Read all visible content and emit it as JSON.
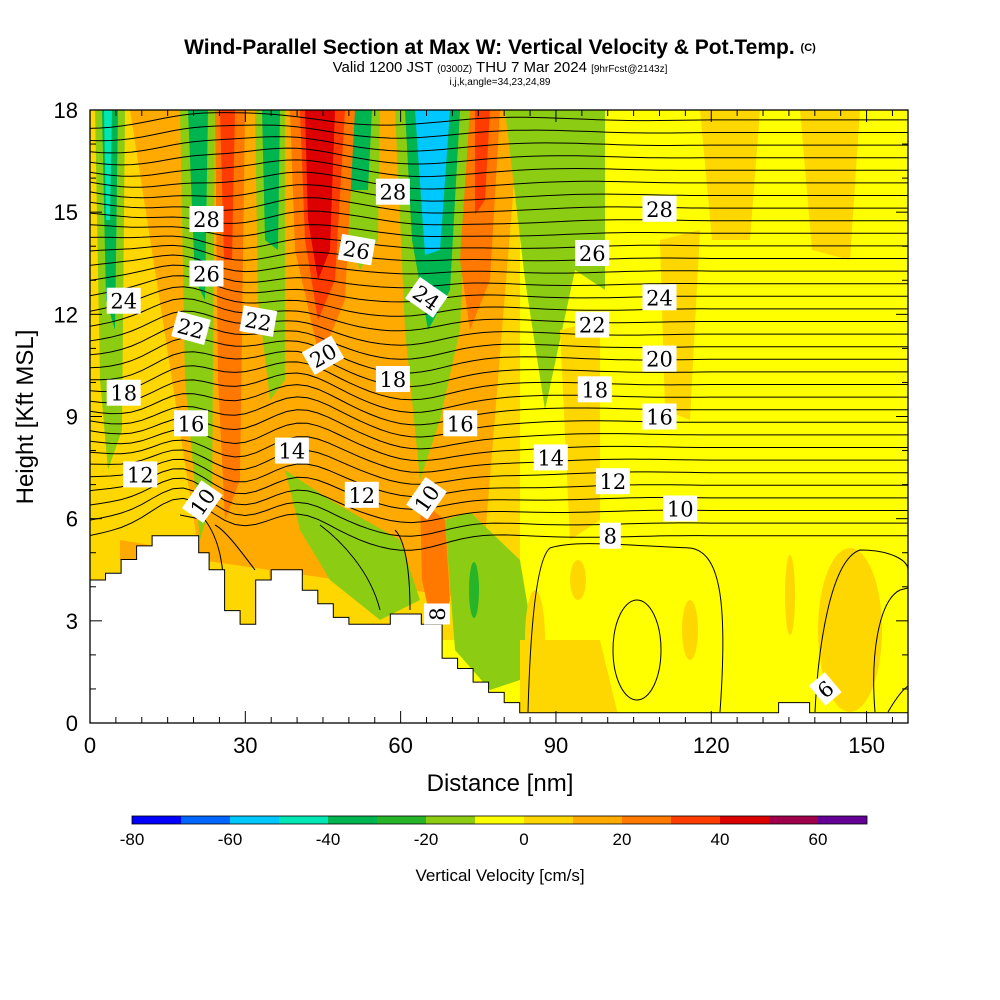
{
  "title": {
    "main": "Wind-Parallel Section at Max W: Vertical Velocity & Pot.Temp.",
    "copyright": "(C)",
    "valid_prefix": "Valid 1200 JST",
    "valid_utc": "(0300Z)",
    "valid_date": "THU 7 Mar 2024",
    "fcst": "[9hrFcst@2143z]",
    "params": "i,j,k,angle=34,23,24,89"
  },
  "chart_data": {
    "type": "heatmap",
    "xlabel": "Distance [nm]",
    "ylabel": "Height [Kft MSL]",
    "xlim": [
      0,
      158
    ],
    "ylim": [
      0,
      18
    ],
    "x_ticks": [
      0,
      30,
      60,
      90,
      120,
      150
    ],
    "y_ticks": [
      0,
      3,
      6,
      9,
      12,
      15,
      18
    ],
    "colorbar": {
      "label": "Vertical Velocity [cm/s]",
      "tick_labels": [
        -80,
        -60,
        -40,
        -20,
        0,
        20,
        40,
        60
      ],
      "bounds": [
        -80,
        -70,
        -60,
        -50,
        -40,
        -30,
        -20,
        -10,
        0,
        10,
        20,
        30,
        40,
        50,
        60,
        70
      ],
      "colors": [
        "#0000ff",
        "#0066ff",
        "#00c8ff",
        "#00e6b4",
        "#00b450",
        "#28b428",
        "#8ccd14",
        "#ffff00",
        "#ffd700",
        "#ffaa00",
        "#ff7800",
        "#ff3c00",
        "#dc0000",
        "#a0004b",
        "#640096"
      ]
    },
    "contour_field": "Potential temperature (labels in figure units)",
    "contour_labels": [
      {
        "text": "28",
        "x": 22.5,
        "y": 14.8,
        "rot": 0
      },
      {
        "text": "26",
        "x": 22.5,
        "y": 13.2,
        "rot": 0
      },
      {
        "text": "24",
        "x": 6.5,
        "y": 12.4,
        "rot": 0
      },
      {
        "text": "22",
        "x": 19.5,
        "y": 11.6,
        "rot": 15
      },
      {
        "text": "22",
        "x": 32.5,
        "y": 11.8,
        "rot": 10
      },
      {
        "text": "18",
        "x": 6.5,
        "y": 9.7,
        "rot": 0
      },
      {
        "text": "16",
        "x": 19.5,
        "y": 8.8,
        "rot": 0
      },
      {
        "text": "12",
        "x": 9.7,
        "y": 7.3,
        "rot": 0
      },
      {
        "text": "10",
        "x": 21.7,
        "y": 6.5,
        "rot": -55
      },
      {
        "text": "14",
        "x": 39,
        "y": 8.0,
        "rot": 0
      },
      {
        "text": "20",
        "x": 45,
        "y": 10.8,
        "rot": -30
      },
      {
        "text": "26",
        "x": 51.5,
        "y": 13.9,
        "rot": 10
      },
      {
        "text": "28",
        "x": 58.5,
        "y": 15.6,
        "rot": 0
      },
      {
        "text": "18",
        "x": 58.5,
        "y": 10.1,
        "rot": 0
      },
      {
        "text": "12",
        "x": 52.5,
        "y": 6.7,
        "rot": 0
      },
      {
        "text": "24",
        "x": 65,
        "y": 12.5,
        "rot": 35
      },
      {
        "text": "16",
        "x": 71.5,
        "y": 8.8,
        "rot": 0
      },
      {
        "text": "10",
        "x": 65,
        "y": 6.6,
        "rot": -55
      },
      {
        "text": "8",
        "x": 67,
        "y": 3.2,
        "rot": -90
      },
      {
        "text": "14",
        "x": 89,
        "y": 7.8,
        "rot": 0
      },
      {
        "text": "26",
        "x": 97,
        "y": 13.8,
        "rot": 0
      },
      {
        "text": "22",
        "x": 97,
        "y": 11.7,
        "rot": 0
      },
      {
        "text": "18",
        "x": 97.5,
        "y": 9.8,
        "rot": 0
      },
      {
        "text": "12",
        "x": 101,
        "y": 7.1,
        "rot": 0
      },
      {
        "text": "8",
        "x": 100.5,
        "y": 5.5,
        "rot": 0
      },
      {
        "text": "28",
        "x": 110,
        "y": 15.1,
        "rot": 0
      },
      {
        "text": "24",
        "x": 110,
        "y": 12.5,
        "rot": 0
      },
      {
        "text": "20",
        "x": 110,
        "y": 10.7,
        "rot": 0
      },
      {
        "text": "16",
        "x": 110,
        "y": 9.0,
        "rot": 0
      },
      {
        "text": "10",
        "x": 114,
        "y": 6.3,
        "rot": 0
      },
      {
        "text": "6",
        "x": 142,
        "y": 1.0,
        "rot": -40
      }
    ],
    "terrain": [
      [
        0,
        4.2
      ],
      [
        3,
        4.2
      ],
      [
        3,
        4.4
      ],
      [
        6,
        4.4
      ],
      [
        6,
        4.8
      ],
      [
        9,
        4.8
      ],
      [
        9,
        5.2
      ],
      [
        12,
        5.2
      ],
      [
        12,
        5.5
      ],
      [
        21,
        5.5
      ],
      [
        21,
        5.0
      ],
      [
        23,
        5.0
      ],
      [
        23,
        4.5
      ],
      [
        26,
        4.5
      ],
      [
        26,
        3.3
      ],
      [
        29,
        3.3
      ],
      [
        29,
        2.9
      ],
      [
        32,
        2.9
      ],
      [
        32,
        4.2
      ],
      [
        35,
        4.2
      ],
      [
        35,
        4.5
      ],
      [
        41,
        4.5
      ],
      [
        41,
        3.9
      ],
      [
        44,
        3.9
      ],
      [
        44,
        3.5
      ],
      [
        47,
        3.5
      ],
      [
        47,
        3.1
      ],
      [
        50,
        3.1
      ],
      [
        50,
        2.9
      ],
      [
        58,
        2.9
      ],
      [
        58,
        3.2
      ],
      [
        64,
        3.2
      ],
      [
        64,
        2.9
      ],
      [
        68,
        2.9
      ],
      [
        68,
        1.9
      ],
      [
        71,
        1.9
      ],
      [
        71,
        1.6
      ],
      [
        74,
        1.6
      ],
      [
        74,
        1.2
      ],
      [
        77,
        1.2
      ],
      [
        77,
        0.9
      ],
      [
        80,
        0.9
      ],
      [
        80,
        0.6
      ],
      [
        83,
        0.6
      ],
      [
        83,
        0.3
      ],
      [
        133,
        0.3
      ],
      [
        133,
        0.6
      ],
      [
        139,
        0.6
      ],
      [
        139,
        0.3
      ],
      [
        158,
        0.3
      ],
      [
        158,
        0
      ],
      [
        0,
        0
      ]
    ]
  }
}
